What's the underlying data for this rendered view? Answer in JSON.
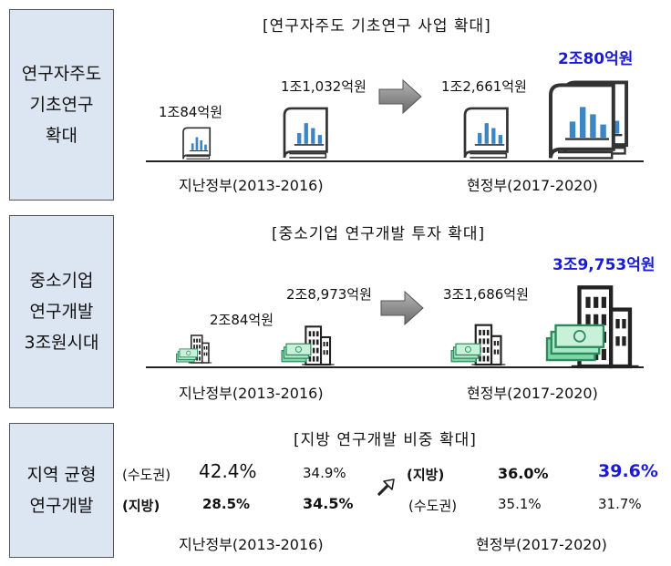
{
  "sections": [
    {
      "side_label": [
        "연구자주도",
        "기초연구",
        "확대"
      ],
      "title": "[연구자주도 기초연구 사업 확대]",
      "amounts": [
        "1조84억원",
        "1조1,032억원",
        "1조2,661억원",
        "2조80억원"
      ],
      "period_prev": "지난정부(2013-2016)",
      "period_curr": "현정부(2017-2020)"
    },
    {
      "side_label": [
        "중소기업",
        "연구개발",
        "3조원시대"
      ],
      "title": "[중소기업 연구개발 투자 확대]",
      "amounts": [
        "2조84억원",
        "2조8,973억원",
        "3조1,686억원",
        "3조9,753억원"
      ],
      "period_prev": "지난정부(2013-2016)",
      "period_curr": "현정부(2017-2020)"
    },
    {
      "side_label": [
        "지역 균형",
        "연구개발"
      ],
      "title": "[지방 연구개발 비중 확대]",
      "prev": {
        "row1": {
          "label": "(수도권)",
          "v1": "42.4%",
          "v2": "34.9%"
        },
        "row2": {
          "label": "(지방)",
          "v1": "28.5%",
          "v2": "34.5%"
        }
      },
      "curr": {
        "row1": {
          "label": "(지방)",
          "v1": "36.0%",
          "v2": "39.6%"
        },
        "row2": {
          "label": "(수도권)",
          "v1": "35.1%",
          "v2": "31.7%"
        }
      },
      "period_prev": "지난정부(2013-2016)",
      "period_curr": "현정부(2017-2020)"
    }
  ],
  "icons": {
    "book": "book-chart-icon",
    "building": "office-building-icon",
    "money": "money-stack-icon",
    "arrow": "right-arrow-icon"
  },
  "colors": {
    "highlight": "#1a1adb",
    "side_bg": "#dce6f2",
    "chart_blue": "#3d86c6"
  }
}
